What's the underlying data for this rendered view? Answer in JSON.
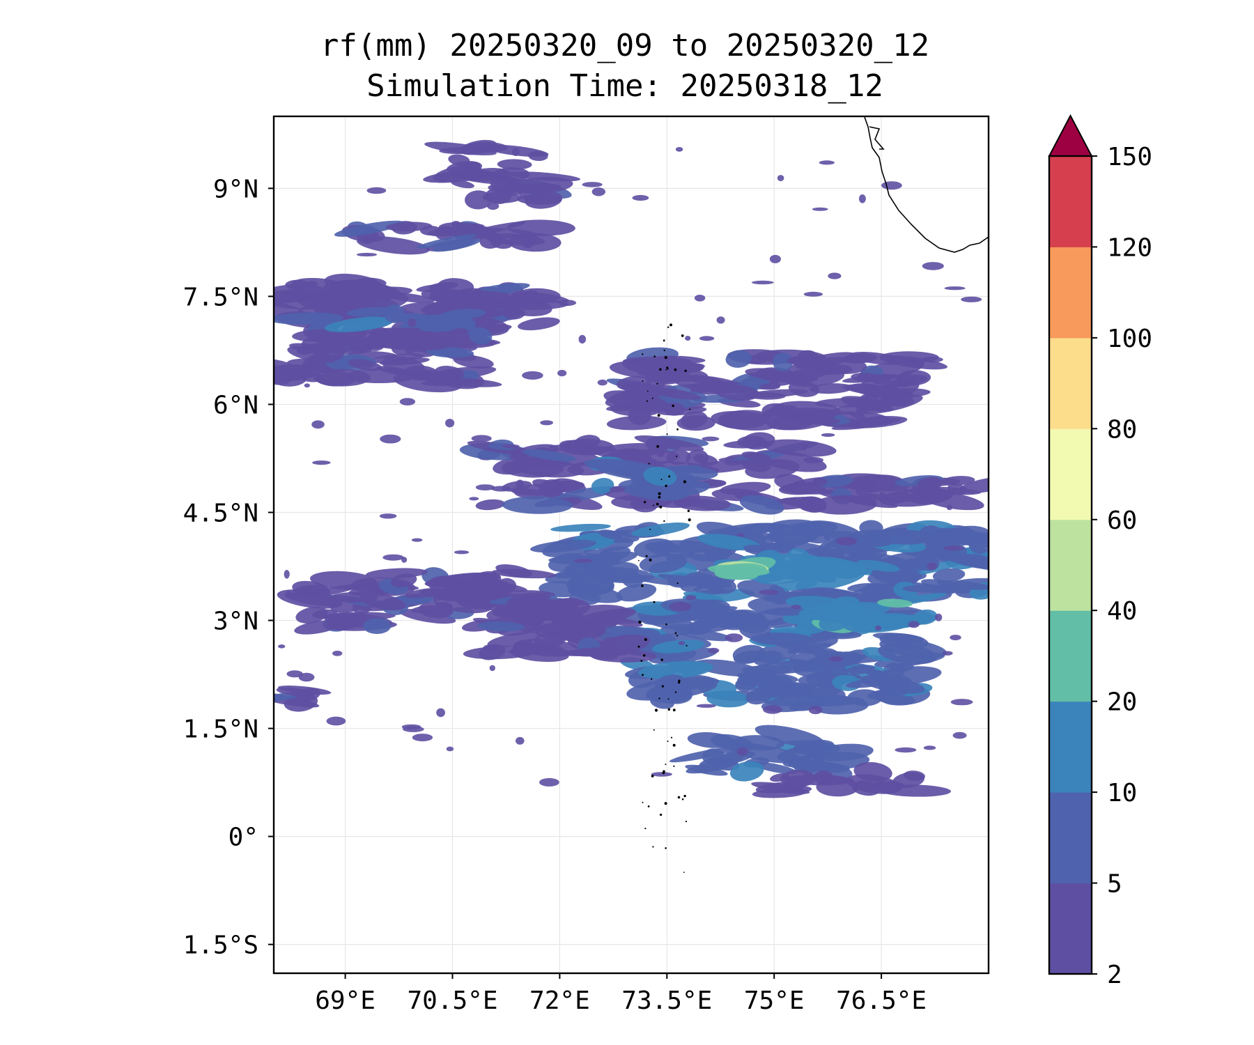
{
  "chart_data": {
    "type": "heatmap",
    "title": "rf(mm) 20250320_09 to 20250320_12",
    "subtitle": "Simulation Time: 20250318_12",
    "xlim": [
      68.0,
      78.0
    ],
    "ylim": [
      -1.9,
      10.0
    ],
    "x_ticks": [
      {
        "value": 69.0,
        "label": "69°E"
      },
      {
        "value": 70.5,
        "label": "70.5°E"
      },
      {
        "value": 72.0,
        "label": "72°E"
      },
      {
        "value": 73.5,
        "label": "73.5°E"
      },
      {
        "value": 75.0,
        "label": "75°E"
      },
      {
        "value": 76.5,
        "label": "76.5°E"
      }
    ],
    "y_ticks": [
      {
        "value": 9.0,
        "label": "9°N"
      },
      {
        "value": 7.5,
        "label": "7.5°N"
      },
      {
        "value": 6.0,
        "label": "6°N"
      },
      {
        "value": 4.5,
        "label": "4.5°N"
      },
      {
        "value": 3.0,
        "label": "3°N"
      },
      {
        "value": 1.5,
        "label": "1.5°N"
      },
      {
        "value": 0.0,
        "label": "0°"
      },
      {
        "value": -1.5,
        "label": "1.5°S"
      }
    ],
    "grid": true,
    "colorbar": {
      "levels": [
        2,
        5,
        10,
        20,
        40,
        60,
        80,
        100,
        120,
        150
      ],
      "labels": [
        "2",
        "5",
        "10",
        "20",
        "40",
        "60",
        "80",
        "100",
        "120",
        "150"
      ],
      "colors": [
        "#5e4fa2",
        "#4f62ad",
        "#3b83bb",
        "#62bea6",
        "#bde2a0",
        "#f2f9b1",
        "#fcdd8c",
        "#f79a5b",
        "#d6404e"
      ],
      "extend_color": "#9e0142",
      "extend": "max",
      "position": "right"
    },
    "rain_bands": [
      {
        "lon": [
          68.0,
          71.8
        ],
        "lat": [
          7.1,
          7.7
        ],
        "level": 0
      },
      {
        "lon": [
          68.0,
          70.9
        ],
        "lat": [
          6.3,
          6.9
        ],
        "level": 0
      },
      {
        "lon": [
          68.0,
          69.6
        ],
        "lat": [
          7.4,
          7.6
        ],
        "level": 0
      },
      {
        "lon": [
          69.0,
          72.0
        ],
        "lat": [
          8.2,
          8.5
        ],
        "level": 0
      },
      {
        "lon": [
          68.5,
          71.0
        ],
        "lat": [
          6.7,
          7.1
        ],
        "level": 0
      },
      {
        "lon": [
          69.0,
          70.8
        ],
        "lat": [
          7.0,
          7.3
        ],
        "level": 1
      },
      {
        "lon": [
          71.0,
          75.5
        ],
        "lat": [
          5.1,
          5.5
        ],
        "level": 0
      },
      {
        "lon": [
          71.0,
          77.5
        ],
        "lat": [
          4.6,
          4.95
        ],
        "level": 0
      },
      {
        "lon": [
          72.0,
          78.0
        ],
        "lat": [
          3.3,
          4.3
        ],
        "level": 1
      },
      {
        "lon": [
          73.0,
          77.0
        ],
        "lat": [
          1.8,
          3.2
        ],
        "level": 1
      },
      {
        "lon": [
          72.5,
          73.8
        ],
        "lat": [
          4.8,
          5.2
        ],
        "level": 1
      },
      {
        "lon": [
          74.5,
          76.5
        ],
        "lat": [
          3.6,
          3.9
        ],
        "level": 2
      },
      {
        "lon": [
          75.5,
          77.2
        ],
        "lat": [
          2.9,
          3.3
        ],
        "level": 2
      },
      {
        "lon": [
          74.0,
          76.0
        ],
        "lat": [
          0.9,
          1.4
        ],
        "level": 1
      },
      {
        "lon": [
          74.2,
          74.7
        ],
        "lat": [
          3.6,
          3.75
        ],
        "level": 3
      },
      {
        "lon": [
          68.5,
          71.5
        ],
        "lat": [
          2.9,
          3.7
        ],
        "level": 0
      },
      {
        "lon": [
          68.0,
          68.5
        ],
        "lat": [
          1.8,
          2.1
        ],
        "level": 0
      },
      {
        "lon": [
          71.0,
          73.0
        ],
        "lat": [
          2.5,
          3.3
        ],
        "level": 0
      },
      {
        "lon": [
          73.0,
          77.0
        ],
        "lat": [
          5.7,
          6.7
        ],
        "level": 0
      },
      {
        "lon": [
          75.0,
          77.0
        ],
        "lat": [
          0.6,
          0.9
        ],
        "level": 0
      },
      {
        "lon": [
          70.5,
          71.8
        ],
        "lat": [
          8.8,
          9.6
        ],
        "level": 0
      },
      {
        "lon": [
          77.0,
          78.0
        ],
        "lat": [
          4.7,
          4.95
        ],
        "level": 0
      }
    ],
    "coastline": "India (southern tip, upper right)",
    "islands": "Maldives (dotted atolls near 73.5°E)"
  }
}
